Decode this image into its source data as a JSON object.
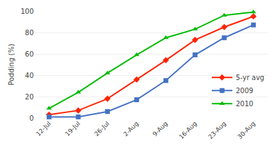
{
  "chart_data": {
    "type": "line",
    "categories": [
      "12-Jul",
      "19-Jul",
      "26-Jul",
      "2-Aug",
      "9-Aug",
      "16-Aug",
      "23-Aug",
      "30-Aug"
    ],
    "series": [
      {
        "name": "5-yr avg",
        "color": "#FF2200",
        "marker": "diamond",
        "values": [
          3,
          7,
          18,
          36,
          54,
          73,
          85,
          95
        ]
      },
      {
        "name": "2009",
        "color": "#4472C4",
        "marker": "square",
        "values": [
          1,
          1,
          6,
          17,
          35,
          59,
          75,
          87
        ]
      },
      {
        "name": "2010",
        "color": "#00BB00",
        "marker": "triangle-up",
        "values": [
          9,
          24,
          42,
          59,
          75,
          83,
          96,
          99
        ]
      }
    ],
    "ylabel": "Podding (%)",
    "ylim": [
      0,
      100
    ],
    "yticks": [
      0,
      20,
      40,
      60,
      80,
      100
    ],
    "grid": true,
    "legend": "lower right"
  }
}
